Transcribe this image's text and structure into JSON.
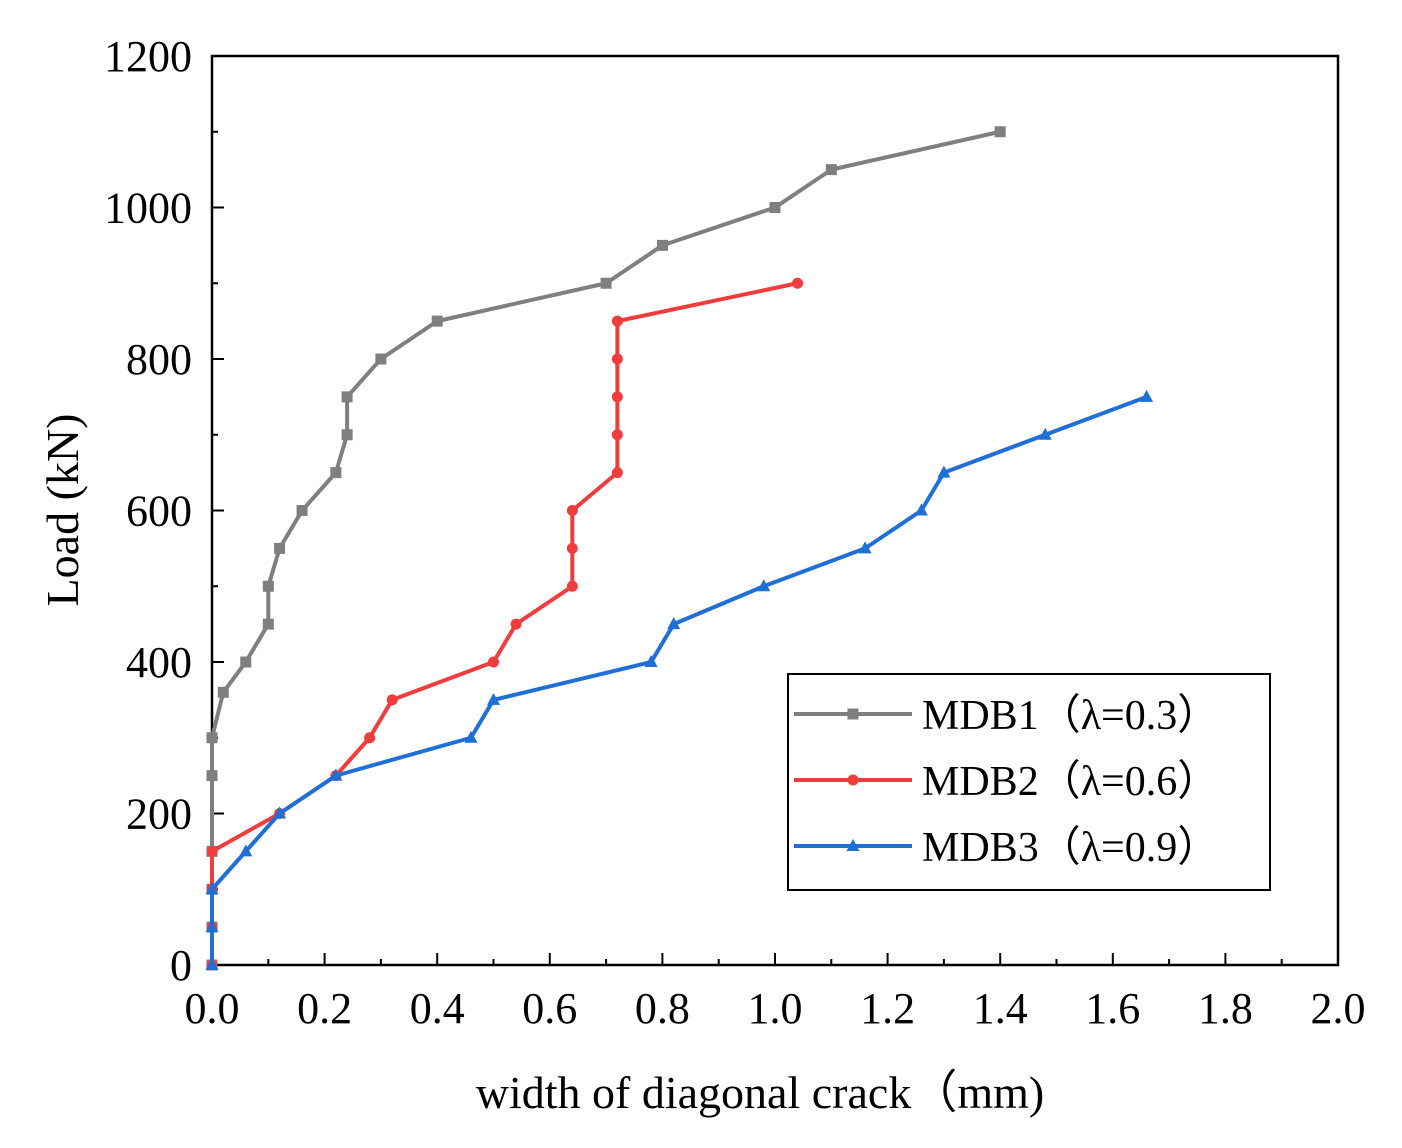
{
  "chart_data": {
    "type": "line",
    "title": "",
    "xlabel": "width of diagonal crack（mm)",
    "ylabel": "Load (kN)",
    "xlim": [
      0,
      2.0
    ],
    "ylim": [
      0,
      1200
    ],
    "xticks": [
      0.0,
      0.2,
      0.4,
      0.6,
      0.8,
      1.0,
      1.2,
      1.4,
      1.6,
      1.8,
      2.0
    ],
    "xtick_labels": [
      "0.0",
      "0.2",
      "0.4",
      "0.6",
      "0.8",
      "1.0",
      "1.2",
      "1.4",
      "1.6",
      "1.8",
      "2.0"
    ],
    "yticks": [
      0,
      200,
      400,
      600,
      800,
      1000,
      1200
    ],
    "ytick_labels": [
      "0",
      "200",
      "400",
      "600",
      "800",
      "1000",
      "1200"
    ],
    "grid": false,
    "legend_position": "bottom-right",
    "series": [
      {
        "name": "MDB1（λ=0.3）",
        "color": "#7f7f7f",
        "marker": "square",
        "x": [
          0.0,
          0.0,
          0.0,
          0.0,
          0.0,
          0.0,
          0.02,
          0.06,
          0.1,
          0.1,
          0.12,
          0.16,
          0.22,
          0.24,
          0.24,
          0.3,
          0.4,
          0.7,
          0.8,
          1.0,
          1.1,
          1.4
        ],
        "y": [
          0,
          50,
          100,
          150,
          250,
          300,
          360,
          400,
          450,
          500,
          550,
          600,
          650,
          700,
          750,
          800,
          850,
          900,
          950,
          1000,
          1050,
          1100
        ]
      },
      {
        "name": "MDB2（λ=0.6）",
        "color": "#f03c3c",
        "marker": "circle",
        "x": [
          0.0,
          0.0,
          0.0,
          0.0,
          0.12,
          0.22,
          0.28,
          0.32,
          0.5,
          0.54,
          0.64,
          0.64,
          0.64,
          0.72,
          0.72,
          0.72,
          0.72,
          0.72,
          1.04
        ],
        "y": [
          0,
          50,
          100,
          150,
          200,
          250,
          300,
          350,
          400,
          450,
          500,
          550,
          600,
          650,
          700,
          750,
          800,
          850,
          900
        ]
      },
      {
        "name": "MDB3（λ=0.9）",
        "color": "#1f6fd6",
        "marker": "triangle",
        "x": [
          0.0,
          0.0,
          0.0,
          0.06,
          0.12,
          0.22,
          0.46,
          0.5,
          0.78,
          0.82,
          0.98,
          1.16,
          1.26,
          1.3,
          1.48,
          1.66
        ],
        "y": [
          0,
          50,
          100,
          150,
          200,
          250,
          300,
          350,
          400,
          450,
          500,
          550,
          600,
          650,
          700,
          750
        ]
      }
    ]
  }
}
